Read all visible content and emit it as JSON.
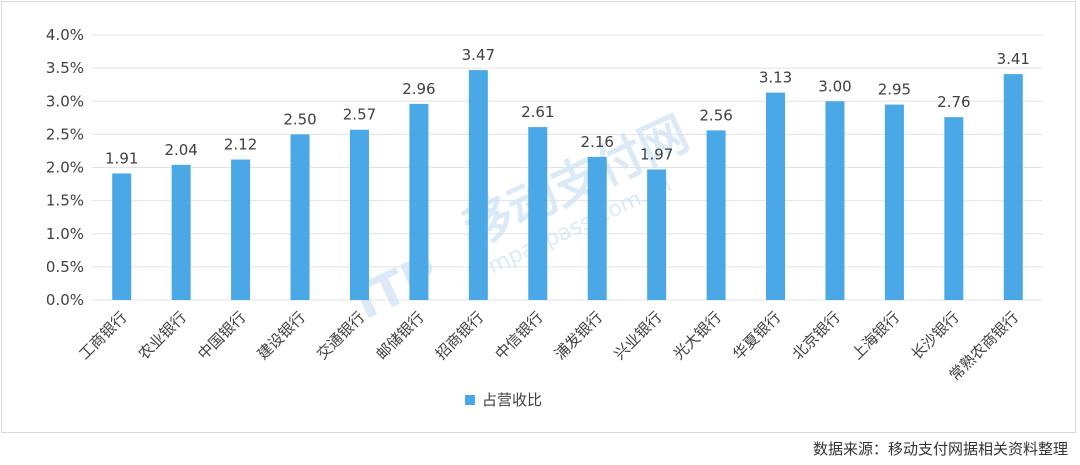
{
  "chart_data": {
    "type": "bar",
    "categories": [
      "工商银行",
      "农业银行",
      "中国银行",
      "建设银行",
      "交通银行",
      "邮储银行",
      "招商银行",
      "中信银行",
      "浦发银行",
      "兴业银行",
      "光大银行",
      "华夏银行",
      "北京银行",
      "上海银行",
      "长沙银行",
      "常熟农商银行"
    ],
    "series": [
      {
        "name": "占营收比",
        "values": [
          1.91,
          2.04,
          2.12,
          2.5,
          2.57,
          2.96,
          3.47,
          2.61,
          2.16,
          1.97,
          2.56,
          3.13,
          3.0,
          2.95,
          2.76,
          3.41
        ]
      }
    ],
    "data_labels": [
      "1.91",
      "2.04",
      "2.12",
      "2.50",
      "2.57",
      "2.96",
      "3.47",
      "2.61",
      "2.16",
      "1.97",
      "2.56",
      "3.13",
      "3.00",
      "2.95",
      "2.76",
      "3.41"
    ],
    "y_ticks": [
      "0.0%",
      "0.5%",
      "1.0%",
      "1.5%",
      "2.0%",
      "2.5%",
      "3.0%",
      "3.5%",
      "4.0%"
    ],
    "ylim": [
      0,
      4.0
    ],
    "grid": true,
    "legend_position": "bottom",
    "bar_color": "#4aa8e6",
    "title": "",
    "xlabel": "",
    "ylabel": ""
  },
  "watermark": {
    "logo_letters": "ITP",
    "text": "移动支付网",
    "subtext": "mpaypass.com.cn"
  },
  "source_note": "数据来源：移动支付网据相关资料整理"
}
